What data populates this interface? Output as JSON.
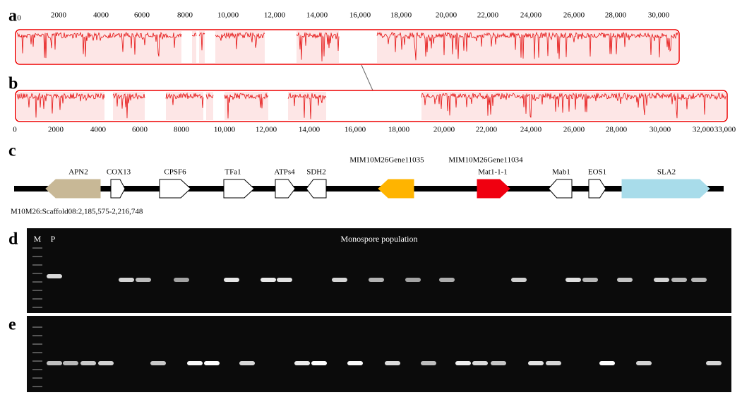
{
  "panel_labels": [
    "a",
    "b",
    "c",
    "d",
    "e"
  ],
  "panel_a": {
    "axis_ticks": [
      "0",
      "2000",
      "4000",
      "6000",
      "8000",
      "10,000",
      "12,000",
      "14,000",
      "16,000",
      "18,000",
      "20,000",
      "22,000",
      "24,000",
      "26,000",
      "28,000",
      "30,000"
    ]
  },
  "panel_b": {
    "axis_ticks": [
      "0",
      "2000",
      "4000",
      "6000",
      "8000",
      "10,000",
      "12,000",
      "14,000",
      "16,000",
      "18,000",
      "20,000",
      "22,000",
      "24,000",
      "26,000",
      "28,000",
      "30,000",
      "32,000",
      "33,000"
    ]
  },
  "panel_c": {
    "gene_labels": [
      "APN2",
      "COX13",
      "CPSF6",
      "TFa1",
      "ATPs4",
      "SDH2",
      "Mat1-1-1",
      "Mab1",
      "EOS1",
      "SLA2"
    ],
    "annotations": [
      "MIM10M26Gene11035",
      "MIM10M26Gene11034"
    ],
    "locus": "M10M26:Scaffold08:2,185,575-2,216,748"
  },
  "panel_d": {
    "lane_labels": [
      "M",
      "P"
    ],
    "title": "Monospore population"
  }
}
